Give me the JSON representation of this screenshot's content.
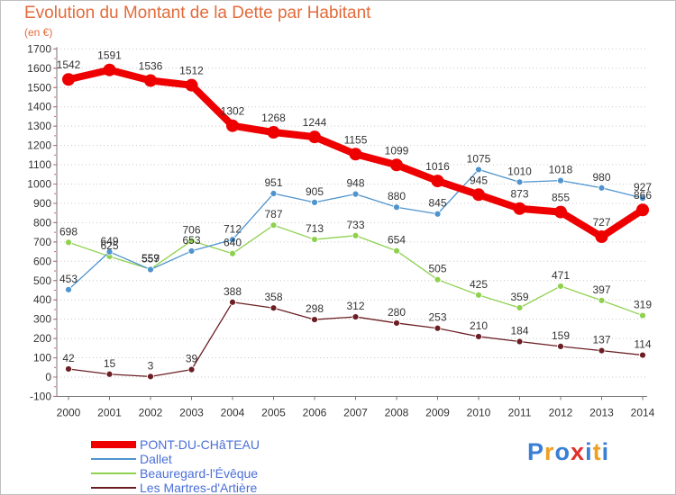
{
  "title": "Evolution du Montant de la Dette par Habitant",
  "subtitle": "(en €)",
  "chart_data": {
    "type": "line",
    "title": "Evolution du Montant de la Dette par Habitant",
    "ylabel": "(en €)",
    "xlabel": "",
    "categories": [
      "2000",
      "2001",
      "2002",
      "2003",
      "2004",
      "2005",
      "2006",
      "2007",
      "2008",
      "2009",
      "2010",
      "2011",
      "2012",
      "2013",
      "2014"
    ],
    "ylim": [
      -100,
      1700
    ],
    "yticks": [
      "-100",
      "0",
      "100",
      "200",
      "300",
      "400",
      "500",
      "600",
      "700",
      "800",
      "900",
      "1000",
      "1100",
      "1200",
      "1300",
      "1400",
      "1500",
      "1600",
      "1700"
    ],
    "grid": "dotted-horizontal",
    "series": [
      {
        "name": "PONT-DU-CHâTEAU",
        "color": "#ee0000",
        "values": [
          1542,
          1591,
          1536,
          1512,
          1302,
          1268,
          1244,
          1155,
          1099,
          1016,
          945,
          873,
          855,
          727,
          866
        ]
      },
      {
        "name": "Dallet",
        "color": "#4f94cd",
        "values": [
          453,
          649,
          557,
          653,
          712,
          951,
          905,
          948,
          880,
          845,
          1075,
          1010,
          1018,
          980,
          927
        ]
      },
      {
        "name": "Beauregard-l'Évêque",
        "color": "#8fd14f",
        "values": [
          698,
          625,
          559,
          706,
          640,
          787,
          713,
          733,
          654,
          505,
          425,
          359,
          471,
          397,
          319
        ]
      },
      {
        "name": "Les Martres-d'Artière",
        "color": "#6b1f24",
        "values": [
          42,
          15,
          3,
          39,
          388,
          358,
          298,
          312,
          280,
          253,
          210,
          184,
          159,
          137,
          114
        ]
      }
    ]
  },
  "legend": [
    {
      "label": "PONT-DU-CHâTEAU",
      "color": "#ee0000"
    },
    {
      "label": "Dallet",
      "color": "#4f94cd"
    },
    {
      "label": "Beauregard-l'Évêque",
      "color": "#8fd14f"
    },
    {
      "label": "Les Martres-d'Artière",
      "color": "#6b1f24"
    }
  ],
  "logo": {
    "text": "Proxiti",
    "letters": [
      "P",
      "r",
      "o",
      "x",
      "i",
      "t",
      "i"
    ],
    "colors": [
      "#3a7fd5",
      "#f0a020",
      "#3a7fd5",
      "#e0302a",
      "#3a7fd5",
      "#f0a020",
      "#3a7fd5"
    ]
  }
}
